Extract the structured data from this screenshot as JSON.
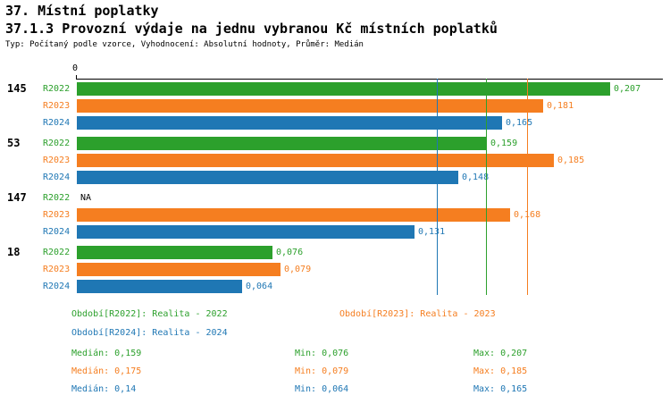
{
  "title": "37. Místní poplatky",
  "subtitle": "37.1.3 Provozní výdaje na jednu vybranou Kč místních poplatků",
  "meta": "Typ: Počítaný podle vzorce, Vyhodnocení: Absolutní hodnoty, Průměr: Medián",
  "colors": {
    "R2022": "#2CA02C",
    "R2023": "#F57E20",
    "R2024": "#1F77B4"
  },
  "chart_data": {
    "type": "bar",
    "orientation": "horizontal",
    "axis_zero_label": "0",
    "xlim": [
      0,
      0.228
    ],
    "grid": false,
    "groups": [
      {
        "id": "145",
        "bars": [
          {
            "series": "R2022",
            "value": 0.207,
            "label": "0,207"
          },
          {
            "series": "R2023",
            "value": 0.181,
            "label": "0,181"
          },
          {
            "series": "R2024",
            "value": 0.165,
            "label": "0,165"
          }
        ]
      },
      {
        "id": "53",
        "bars": [
          {
            "series": "R2022",
            "value": 0.159,
            "label": "0,159"
          },
          {
            "series": "R2023",
            "value": 0.185,
            "label": "0,185"
          },
          {
            "series": "R2024",
            "value": 0.148,
            "label": "0,148"
          }
        ]
      },
      {
        "id": "147",
        "bars": [
          {
            "series": "R2022",
            "value": null,
            "label": "NA"
          },
          {
            "series": "R2023",
            "value": 0.168,
            "label": "0,168"
          },
          {
            "series": "R2024",
            "value": 0.131,
            "label": "0,131"
          }
        ]
      },
      {
        "id": "18",
        "bars": [
          {
            "series": "R2022",
            "value": 0.076,
            "label": "0,076"
          },
          {
            "series": "R2023",
            "value": 0.079,
            "label": "0,079"
          },
          {
            "series": "R2024",
            "value": 0.064,
            "label": "0,064"
          }
        ]
      }
    ],
    "median_lines": [
      {
        "series": "R2022",
        "value": 0.159
      },
      {
        "series": "R2023",
        "value": 0.175
      },
      {
        "series": "R2024",
        "value": 0.14
      }
    ]
  },
  "legend": [
    {
      "series": "R2022",
      "label": "Období[R2022]: Realita - 2022"
    },
    {
      "series": "R2023",
      "label": "Období[R2023]: Realita - 2023"
    },
    {
      "series": "R2024",
      "label": "Období[R2024]: Realita - 2024"
    }
  ],
  "stats": [
    {
      "series": "R2022",
      "median": "Medián: 0,159",
      "min": "Min: 0,076",
      "max": "Max: 0,207"
    },
    {
      "series": "R2023",
      "median": "Medián: 0,175",
      "min": "Min: 0,079",
      "max": "Max: 0,185"
    },
    {
      "series": "R2024",
      "median": "Medián: 0,14",
      "min": "Min: 0,064",
      "max": "Max: 0,165"
    }
  ]
}
